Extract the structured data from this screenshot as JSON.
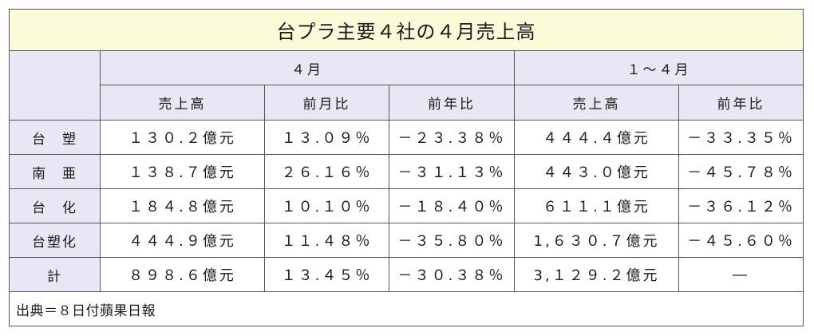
{
  "title": "台プラ主要４社の４月売上高",
  "header": {
    "group1": "４月",
    "group2": "１～４月",
    "cols": [
      "売上高",
      "前月比",
      "前年比",
      "売上高",
      "前年比"
    ]
  },
  "rows": [
    {
      "label": "台　塑",
      "cells": [
        "１３０.２億元",
        "１３.０９％",
        "－２３.３８％",
        "４４４.４億元",
        "－３３.３５％"
      ]
    },
    {
      "label": "南　亜",
      "cells": [
        "１３８.７億元",
        "２６.１６％",
        "－３１.１３％",
        "４４３.０億元",
        "－４５.７８％"
      ]
    },
    {
      "label": "台　化",
      "cells": [
        "１８４.８億元",
        "１０.１０％",
        "－１８.４０％",
        "６１１.１億元",
        "－３６.１２％"
      ]
    },
    {
      "label": "台塑化",
      "cells": [
        "４４４.９億元",
        "１１.４８％",
        "－３５.８０％",
        "1,６３０.７億元",
        "－４５.６０％"
      ]
    },
    {
      "label": "計",
      "cells": [
        "８９８.６億元",
        "１３.４５％",
        "－３０.３８％",
        "3,１２９.２億元",
        "―"
      ]
    }
  ],
  "source": "出典＝８日付蘋果日報"
}
